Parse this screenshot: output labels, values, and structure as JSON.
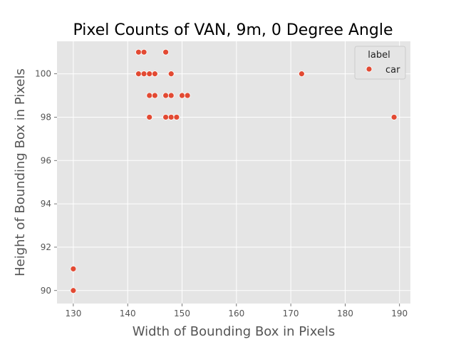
{
  "chart_data": {
    "type": "scatter",
    "title": "Pixel Counts of VAN, 9m, 0 Degree Angle",
    "xlabel": "Width of Bounding Box in Pixels",
    "ylabel": "Height of Bounding Box in Pixels",
    "xlim": [
      127,
      192
    ],
    "ylim": [
      89.4,
      101.5
    ],
    "xticks": [
      130,
      140,
      150,
      160,
      170,
      180,
      190
    ],
    "yticks": [
      90,
      92,
      94,
      96,
      98,
      100
    ],
    "grid": true,
    "legend": {
      "title": "label",
      "placement": "top-right",
      "entries": [
        "car"
      ]
    },
    "colors": {
      "point": "#e24a33",
      "background": "#e5e5e5",
      "grid": "#ffffff"
    },
    "series": [
      {
        "name": "car",
        "points": [
          {
            "x": 142,
            "y": 101
          },
          {
            "x": 143,
            "y": 101
          },
          {
            "x": 147,
            "y": 101
          },
          {
            "x": 142,
            "y": 100
          },
          {
            "x": 143,
            "y": 100
          },
          {
            "x": 144,
            "y": 100
          },
          {
            "x": 145,
            "y": 100
          },
          {
            "x": 148,
            "y": 100
          },
          {
            "x": 172,
            "y": 100
          },
          {
            "x": 144,
            "y": 99
          },
          {
            "x": 145,
            "y": 99
          },
          {
            "x": 147,
            "y": 99
          },
          {
            "x": 148,
            "y": 99
          },
          {
            "x": 150,
            "y": 99
          },
          {
            "x": 151,
            "y": 99
          },
          {
            "x": 144,
            "y": 98
          },
          {
            "x": 147,
            "y": 98
          },
          {
            "x": 148,
            "y": 98
          },
          {
            "x": 149,
            "y": 98
          },
          {
            "x": 189,
            "y": 98
          },
          {
            "x": 130,
            "y": 91
          },
          {
            "x": 130,
            "y": 90
          }
        ]
      }
    ]
  }
}
